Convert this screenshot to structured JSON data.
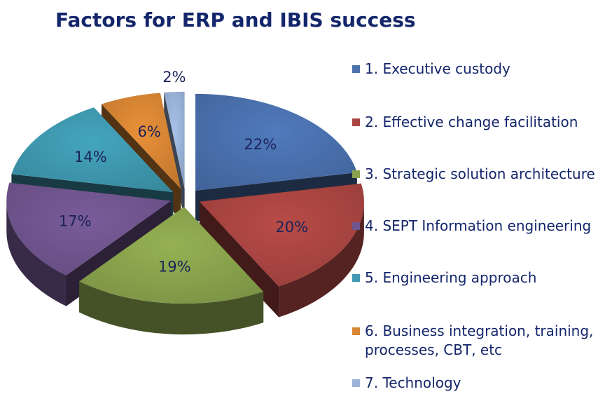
{
  "chart_data": {
    "type": "pie",
    "title": "Factors for ERP and IBIS success",
    "legend_position": "right",
    "series": [
      {
        "label": "1. Executive custody",
        "value": 22,
        "value_label": "22%",
        "color": "#4a71ae"
      },
      {
        "label": "2. Effective change facilitation",
        "value": 20,
        "value_label": "20%",
        "color": "#aa4542"
      },
      {
        "label": "3. Strategic solution architecture",
        "value": 19,
        "value_label": "19%",
        "color": "#8aa44d"
      },
      {
        "label": "4. SEPT Information engineering",
        "value": 17,
        "value_label": "17%",
        "color": "#70558f"
      },
      {
        "label": "5. Engineering approach",
        "value": 14,
        "value_label": "14%",
        "color": "#3f99b0"
      },
      {
        "label": "6. Business integration, training, processes, CBT, etc",
        "value": 6,
        "value_label": "6%",
        "color": "#d88534"
      },
      {
        "label": "7. Technology",
        "value": 2,
        "value_label": "2%",
        "color": "#9bb3d9"
      }
    ]
  }
}
